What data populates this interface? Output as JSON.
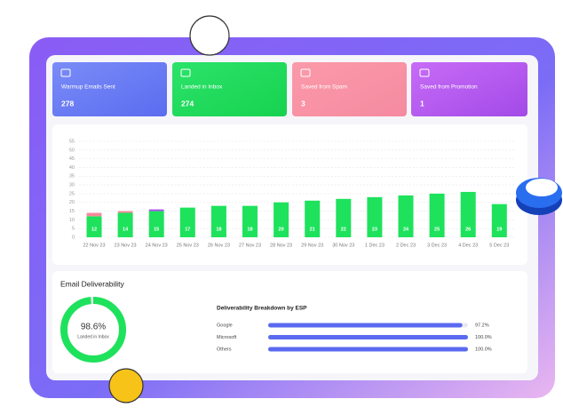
{
  "cards": [
    {
      "title": "Warmup Emails Sent",
      "value": 278
    },
    {
      "title": "Landed in Inbox",
      "value": 274
    },
    {
      "title": "Saved from Spam",
      "value": 3
    },
    {
      "title": "Saved from Promotion",
      "value": 1
    }
  ],
  "chart_data": {
    "type": "bar",
    "stacked": true,
    "categories": [
      "22 Nov 23",
      "23 Nov 23",
      "24 Nov 23",
      "25 Nov 23",
      "26 Nov 23",
      "27 Nov 23",
      "28 Nov 23",
      "29 Nov 23",
      "30 Nov 23",
      "1 Dec 23",
      "2 Dec 23",
      "3 Dec 23",
      "4 Dec 23",
      "5 Dec 23"
    ],
    "series": [
      {
        "name": "Landed in Inbox",
        "color": "#1ee25c",
        "values": [
          12,
          14,
          15,
          17,
          18,
          18,
          20,
          21,
          22,
          23,
          24,
          25,
          26,
          19
        ]
      },
      {
        "name": "Saved from Spam",
        "color": "#f58a9a",
        "values": [
          2,
          1,
          0,
          0,
          0,
          0,
          0,
          0,
          0,
          0,
          0,
          0,
          0,
          0
        ]
      },
      {
        "name": "Saved from Promotion",
        "color": "#a64df0",
        "values": [
          0,
          0,
          1,
          0,
          0,
          0,
          0,
          0,
          0,
          0,
          0,
          0,
          0,
          0
        ]
      }
    ],
    "ylim": [
      0,
      55
    ],
    "yticks": [
      0,
      5,
      10,
      15,
      20,
      25,
      30,
      35,
      40,
      45,
      50,
      55
    ],
    "grid": true
  },
  "deliverability": {
    "title": "Email Deliverability",
    "value": 98.6,
    "value_label": "98.6%",
    "caption": "Landed in Inbox",
    "color": "#1ee25c",
    "breakdown_title": "Deliverability Breakdown by ESP",
    "esp": [
      {
        "name": "Google",
        "value": 97.2,
        "label": "97.2%"
      },
      {
        "name": "Microsoft",
        "value": 100,
        "label": "100.0%"
      },
      {
        "name": "Others",
        "value": 100,
        "label": "100.0%"
      }
    ],
    "bar_color": "#5a6af0"
  }
}
